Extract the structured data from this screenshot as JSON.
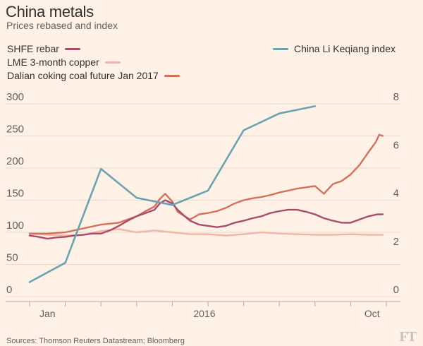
{
  "header": {
    "title": "China metals",
    "subtitle": "Prices rebased and index"
  },
  "colors": {
    "rebar": "#a64d6c",
    "copper": "#f2b5a6",
    "coal": "#d4715a",
    "index": "#6aa3b1",
    "grid": "#e6d9ce",
    "tick": "#66605c",
    "background": "#fff1e5"
  },
  "footer": {
    "source": "Sources: Thomson Reuters Datastream; Bloomberg",
    "logo": "FT"
  },
  "chart_data": {
    "type": "line",
    "title": "China metals",
    "subtitle": "Prices rebased and index",
    "x_domain": [
      0,
      20
    ],
    "x_ticks": [
      {
        "x": 0,
        "label": "Jan"
      },
      {
        "x": 2,
        "label": ""
      },
      {
        "x": 4,
        "label": ""
      },
      {
        "x": 6,
        "label": ""
      },
      {
        "x": 8,
        "label": ""
      },
      {
        "x": 10,
        "label": "2016"
      },
      {
        "x": 12,
        "label": ""
      },
      {
        "x": 14,
        "label": ""
      },
      {
        "x": 16,
        "label": ""
      },
      {
        "x": 18,
        "label": "Oct"
      },
      {
        "x": 20,
        "label": ""
      }
    ],
    "x_labels": [
      {
        "x": 1,
        "label": "Jan"
      },
      {
        "x": 9.8,
        "label": "2016"
      },
      {
        "x": 19.2,
        "label": "Oct"
      }
    ],
    "y_left": {
      "min": 0,
      "max": 300,
      "ticks": [
        0,
        50,
        100,
        150,
        200,
        250,
        300
      ]
    },
    "y_right": {
      "min": 0,
      "max": 8,
      "ticks": [
        0,
        2,
        4,
        6,
        8
      ]
    },
    "legend": [
      {
        "key": "rebar",
        "label": "SHFE rebar"
      },
      {
        "key": "copper",
        "label": "LME 3-month copper"
      },
      {
        "key": "coal",
        "label": "Dalian coking coal future Jan 2017"
      },
      {
        "key": "index",
        "label": "China Li Keqiang index"
      }
    ],
    "series": [
      {
        "key": "rebar",
        "name": "SHFE rebar",
        "axis": "left",
        "points": [
          [
            0,
            95
          ],
          [
            0.5,
            93
          ],
          [
            1,
            90
          ],
          [
            1.5,
            92
          ],
          [
            2,
            93
          ],
          [
            2.5,
            95
          ],
          [
            3,
            96
          ],
          [
            3.5,
            98
          ],
          [
            4,
            98
          ],
          [
            4.5,
            103
          ],
          [
            5,
            110
          ],
          [
            5.5,
            118
          ],
          [
            6,
            125
          ],
          [
            6.5,
            130
          ],
          [
            7,
            135
          ],
          [
            7.3,
            145
          ],
          [
            7.6,
            150
          ],
          [
            8,
            145
          ],
          [
            8.3,
            135
          ],
          [
            8.7,
            125
          ],
          [
            9,
            118
          ],
          [
            9.5,
            112
          ],
          [
            10,
            110
          ],
          [
            10.5,
            108
          ],
          [
            11,
            110
          ],
          [
            11.5,
            115
          ],
          [
            12,
            118
          ],
          [
            12.5,
            122
          ],
          [
            13,
            125
          ],
          [
            13.5,
            130
          ],
          [
            14,
            133
          ],
          [
            14.5,
            135
          ],
          [
            15,
            135
          ],
          [
            15.5,
            132
          ],
          [
            16,
            128
          ],
          [
            16.5,
            122
          ],
          [
            17,
            118
          ],
          [
            17.5,
            115
          ],
          [
            18,
            115
          ],
          [
            18.5,
            120
          ],
          [
            19,
            125
          ],
          [
            19.5,
            128
          ],
          [
            19.8,
            128
          ]
        ]
      },
      {
        "key": "copper",
        "name": "LME 3-month copper",
        "axis": "left",
        "points": [
          [
            0,
            98
          ],
          [
            1,
            96
          ],
          [
            2,
            95
          ],
          [
            3,
            96
          ],
          [
            4,
            102
          ],
          [
            5,
            105
          ],
          [
            6,
            100
          ],
          [
            7,
            103
          ],
          [
            8,
            100
          ],
          [
            9,
            97
          ],
          [
            10,
            97
          ],
          [
            11,
            95
          ],
          [
            12,
            97
          ],
          [
            13,
            100
          ],
          [
            14,
            98
          ],
          [
            15,
            97
          ],
          [
            16,
            96
          ],
          [
            17,
            96
          ],
          [
            18,
            97
          ],
          [
            19,
            96
          ],
          [
            19.8,
            96
          ]
        ]
      },
      {
        "key": "coal",
        "name": "Dalian coking coal future Jan 2017",
        "axis": "left",
        "points": [
          [
            0,
            98
          ],
          [
            1,
            98
          ],
          [
            2,
            100
          ],
          [
            3,
            106
          ],
          [
            4,
            112
          ],
          [
            5,
            115
          ],
          [
            6,
            125
          ],
          [
            6.5,
            133
          ],
          [
            7,
            140
          ],
          [
            7.3,
            152
          ],
          [
            7.6,
            160
          ],
          [
            8,
            148
          ],
          [
            8.3,
            132
          ],
          [
            8.7,
            125
          ],
          [
            9,
            120
          ],
          [
            9.5,
            128
          ],
          [
            10,
            130
          ],
          [
            10.5,
            133
          ],
          [
            11,
            138
          ],
          [
            11.5,
            145
          ],
          [
            12,
            150
          ],
          [
            12.5,
            153
          ],
          [
            13,
            155
          ],
          [
            13.5,
            158
          ],
          [
            14,
            162
          ],
          [
            14.5,
            165
          ],
          [
            15,
            168
          ],
          [
            15.5,
            170
          ],
          [
            16,
            172
          ],
          [
            16.5,
            160
          ],
          [
            17,
            175
          ],
          [
            17.5,
            180
          ],
          [
            18,
            190
          ],
          [
            18.5,
            205
          ],
          [
            19,
            225
          ],
          [
            19.4,
            240
          ],
          [
            19.6,
            252
          ],
          [
            19.8,
            250
          ]
        ]
      },
      {
        "key": "index",
        "name": "China Li Keqiang index",
        "axis": "right",
        "points": [
          [
            0,
            0.6
          ],
          [
            2,
            1.4
          ],
          [
            4,
            5.3
          ],
          [
            6,
            4.1
          ],
          [
            8,
            3.8
          ],
          [
            10,
            4.4
          ],
          [
            12,
            6.9
          ],
          [
            14,
            7.6
          ],
          [
            16,
            7.9
          ]
        ]
      }
    ]
  }
}
